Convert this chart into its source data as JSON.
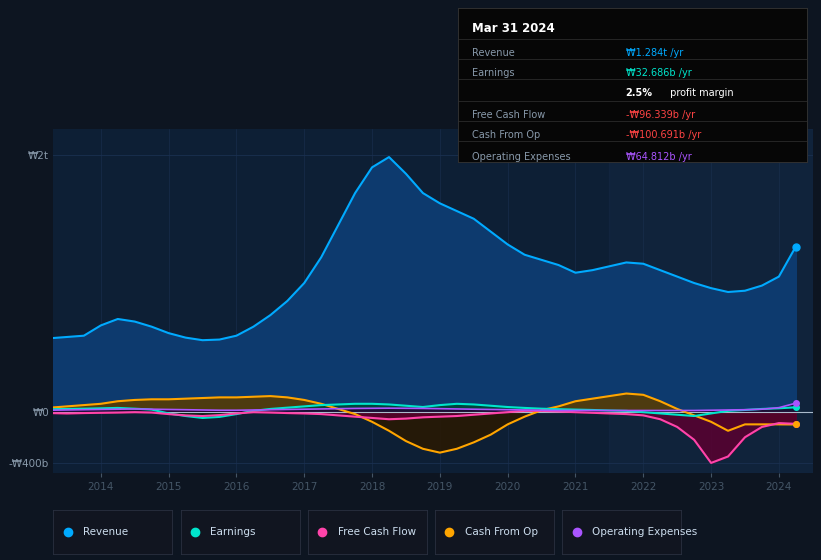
{
  "bg_color": "#0d1521",
  "plot_bg_color": "#0d1f35",
  "grid_color": "#1a3050",
  "series": {
    "revenue": {
      "color": "#00aaff",
      "fill_color": "#0d3a6e",
      "label": "Revenue"
    },
    "earnings": {
      "color": "#00e5cc",
      "fill_color": "#005544",
      "label": "Earnings"
    },
    "free_cash_flow": {
      "color": "#ff44aa",
      "fill_color": "#5a0030",
      "label": "Free Cash Flow"
    },
    "cash_from_op": {
      "color": "#ffa500",
      "fill_color": "#3a2800",
      "label": "Cash From Op"
    },
    "operating_expenses": {
      "color": "#aa55ff",
      "fill_color": "#330055",
      "label": "Operating Expenses"
    }
  },
  "ytick_labels": [
    "₩2t",
    "₩0",
    "-₩400b"
  ],
  "ytick_values": [
    2000,
    0,
    -400
  ],
  "xtick_labels": [
    "2014",
    "2015",
    "2016",
    "2017",
    "2018",
    "2019",
    "2020",
    "2021",
    "2022",
    "2023",
    "2024"
  ],
  "xtick_values": [
    2014,
    2015,
    2016,
    2017,
    2018,
    2019,
    2020,
    2021,
    2022,
    2023,
    2024
  ],
  "xlim": [
    2013.3,
    2024.5
  ],
  "ylim": [
    -480,
    2200
  ],
  "info_box": {
    "date": "Mar 31 2024",
    "rows": [
      {
        "label": "Revenue",
        "value": "₩1.284t /yr",
        "value_color": "#00aaff"
      },
      {
        "label": "Earnings",
        "value": "₩32.686b /yr",
        "value_color": "#00e5cc"
      },
      {
        "label": "",
        "value": "2.5%",
        "value2": " profit margin",
        "value_color": "#ffffff"
      },
      {
        "label": "Free Cash Flow",
        "value": "-₩96.339b /yr",
        "value_color": "#ff4444"
      },
      {
        "label": "Cash From Op",
        "value": "-₩100.691b /yr",
        "value_color": "#ff4444"
      },
      {
        "label": "Operating Expenses",
        "value": "₩64.812b /yr",
        "value_color": "#aa55ff"
      }
    ]
  },
  "legend_items": [
    {
      "color": "#00aaff",
      "label": "Revenue"
    },
    {
      "color": "#00e5cc",
      "label": "Earnings"
    },
    {
      "color": "#ff44aa",
      "label": "Free Cash Flow"
    },
    {
      "color": "#ffa500",
      "label": "Cash From Op"
    },
    {
      "color": "#aa55ff",
      "label": "Operating Expenses"
    }
  ]
}
